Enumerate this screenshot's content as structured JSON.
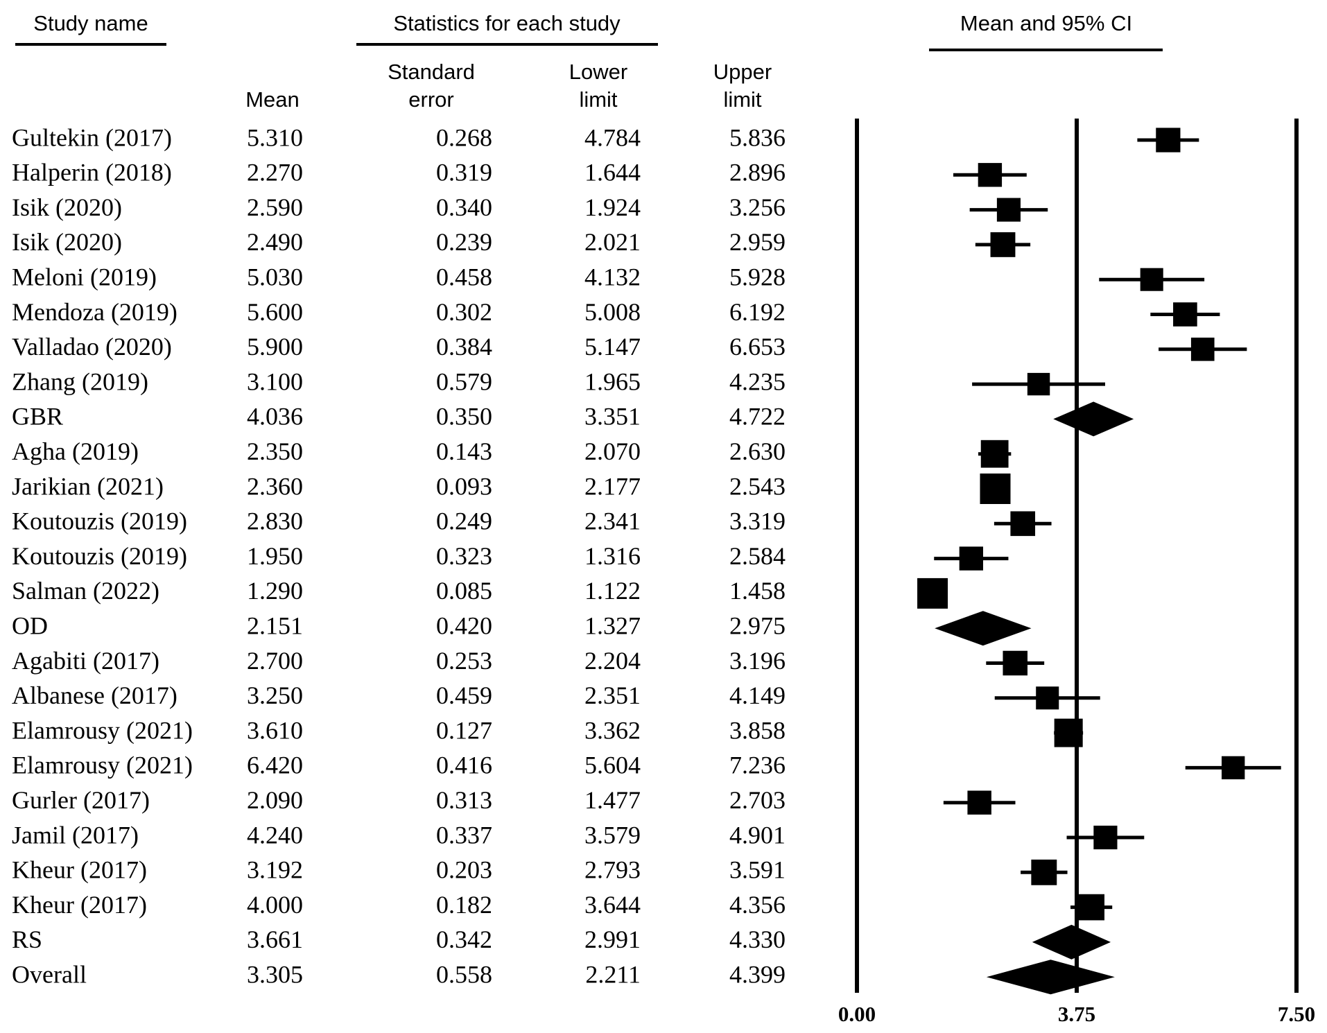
{
  "chart_data": {
    "type": "forest",
    "headers": {
      "study": "Study name",
      "statistics": "Statistics for each study",
      "plot": "Mean and 95% CI"
    },
    "categories": [
      "Gultekin (2017)",
      "Halperin (2018)",
      "Isik (2020)",
      "Isik (2020)",
      "Meloni (2019)",
      "Mendoza (2019)",
      "Valladao (2020)",
      "Zhang (2019)",
      "GBR",
      "Agha (2019)",
      "Jarikian (2021)",
      "Koutouzis (2019)",
      "Koutouzis (2019)",
      "Salman (2022)",
      "OD",
      "Agabiti (2017)",
      "Albanese (2017)",
      "Elamrousy (2021)",
      "Elamrousy (2021)",
      "Gurler (2017)",
      "Jamil (2017)",
      "Kheur (2017)",
      "Kheur (2017)",
      "RS",
      "Overall"
    ],
    "markers": [
      "square",
      "square",
      "square",
      "square",
      "square",
      "square",
      "square",
      "square",
      "diamond",
      "square",
      "square",
      "square",
      "square",
      "square",
      "diamond",
      "square",
      "square",
      "square",
      "square",
      "square",
      "square",
      "square",
      "square",
      "diamond",
      "diamond"
    ],
    "series": [
      {
        "name": "Mean",
        "values": [
          5.31,
          2.27,
          2.59,
          2.49,
          5.03,
          5.6,
          5.9,
          3.1,
          4.036,
          2.35,
          2.36,
          2.83,
          1.95,
          1.29,
          2.151,
          2.7,
          3.25,
          3.61,
          6.42,
          2.09,
          4.24,
          3.192,
          4.0,
          3.661,
          3.305
        ],
        "value_labels": [
          "5.310",
          "2.270",
          "2.590",
          "2.490",
          "5.030",
          "5.600",
          "5.900",
          "3.100",
          "4.036",
          "2.350",
          "2.360",
          "2.830",
          "1.950",
          "1.290",
          "2.151",
          "2.700",
          "3.250",
          "3.610",
          "6.420",
          "2.090",
          "4.240",
          "3.192",
          "4.000",
          "3.661",
          "3.305"
        ]
      },
      {
        "name": "Standard error",
        "values": [
          0.268,
          0.319,
          0.34,
          0.239,
          0.458,
          0.302,
          0.384,
          0.579,
          0.35,
          0.143,
          0.093,
          0.249,
          0.323,
          0.085,
          0.42,
          0.253,
          0.459,
          0.127,
          0.416,
          0.313,
          0.337,
          0.203,
          0.182,
          0.342,
          0.558
        ],
        "value_labels": [
          "0.268",
          "0.319",
          "0.340",
          "0.239",
          "0.458",
          "0.302",
          "0.384",
          "0.579",
          "0.350",
          "0.143",
          "0.093",
          "0.249",
          "0.323",
          "0.085",
          "0.420",
          "0.253",
          "0.459",
          "0.127",
          "0.416",
          "0.313",
          "0.337",
          "0.203",
          "0.182",
          "0.342",
          "0.558"
        ]
      },
      {
        "name": "Lower limit",
        "values": [
          4.784,
          1.644,
          1.924,
          2.021,
          4.132,
          5.008,
          5.147,
          1.965,
          3.351,
          2.07,
          2.177,
          2.341,
          1.316,
          1.122,
          1.327,
          2.204,
          2.351,
          3.362,
          5.604,
          1.477,
          3.579,
          2.793,
          3.644,
          2.991,
          2.211
        ],
        "value_labels": [
          "4.784",
          "1.644",
          "1.924",
          "2.021",
          "4.132",
          "5.008",
          "5.147",
          "1.965",
          "3.351",
          "2.070",
          "2.177",
          "2.341",
          "1.316",
          "1.122",
          "1.327",
          "2.204",
          "2.351",
          "3.362",
          "5.604",
          "1.477",
          "3.579",
          "2.793",
          "3.644",
          "2.991",
          "2.211"
        ]
      },
      {
        "name": "Upper limit",
        "values": [
          5.836,
          2.896,
          3.256,
          2.959,
          5.928,
          6.192,
          6.653,
          4.235,
          4.722,
          2.63,
          2.543,
          3.319,
          2.584,
          1.458,
          2.975,
          3.196,
          4.149,
          3.858,
          7.236,
          2.703,
          4.901,
          3.591,
          4.356,
          4.33,
          4.399
        ],
        "value_labels": [
          "5.836",
          "2.896",
          "3.256",
          "2.959",
          "5.928",
          "6.192",
          "6.653",
          "4.235",
          "4.722",
          "2.630",
          "2.543",
          "3.319",
          "2.584",
          "1.458",
          "2.975",
          "3.196",
          "4.149",
          "3.858",
          "7.236",
          "2.703",
          "4.901",
          "3.591",
          "4.356",
          "4.330",
          "4.399"
        ]
      }
    ],
    "color": "#000000",
    "xlim": [
      0,
      7.5
    ],
    "xticks": [
      {
        "value": 0,
        "label": "0.00"
      },
      {
        "value": 3.75,
        "label": "3.75"
      },
      {
        "value": 7.5,
        "label": "7.50"
      }
    ],
    "grid": true
  }
}
